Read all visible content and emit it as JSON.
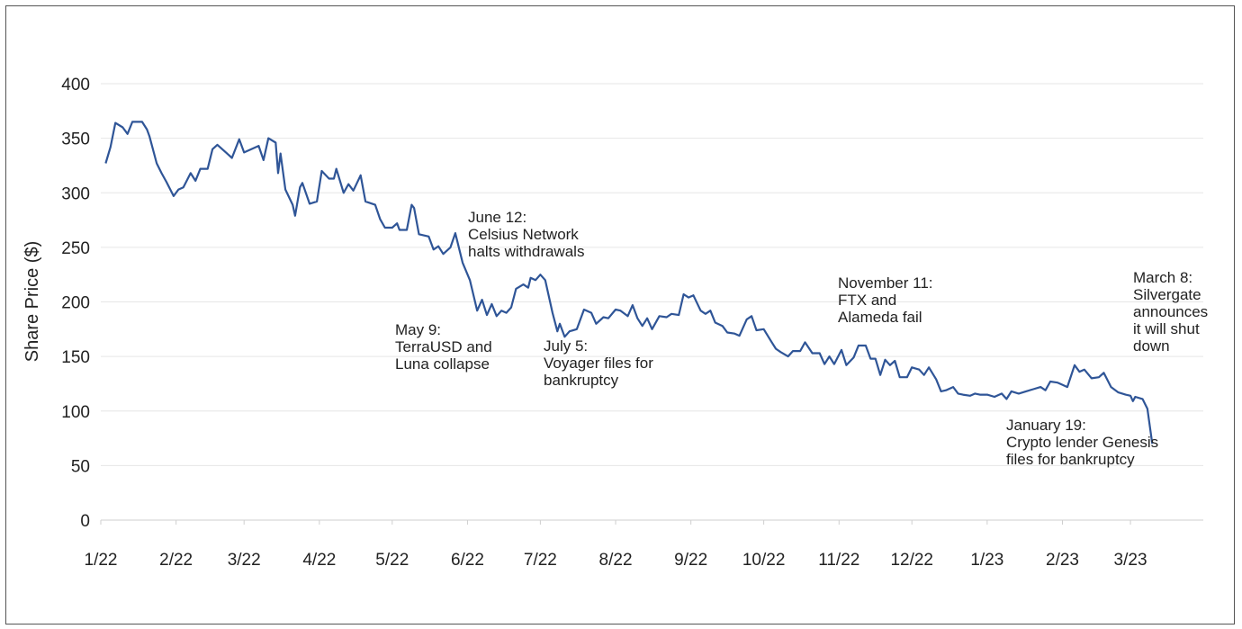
{
  "chart_data": {
    "type": "line",
    "ylabel": "Share Price ($)",
    "xlabel": "",
    "ylim": [
      0,
      400
    ],
    "y_ticks": [
      "0",
      "50",
      "100",
      "150",
      "200",
      "250",
      "300",
      "350",
      "400"
    ],
    "x_ticks": [
      "1/22",
      "2/22",
      "3/22",
      "4/22",
      "5/22",
      "6/22",
      "7/22",
      "8/22",
      "9/22",
      "10/22",
      "11/22",
      "12/22",
      "1/23",
      "2/23",
      "3/23"
    ],
    "grid": "horizontal",
    "colors": {
      "line": "#2f5597",
      "grid": "#e6e6e6",
      "text": "#222222"
    },
    "series": [
      {
        "points": [
          [
            "2022-01-03",
            327
          ],
          [
            "2022-01-05",
            342
          ],
          [
            "2022-01-07",
            364
          ],
          [
            "2022-01-10",
            360
          ],
          [
            "2022-01-12",
            354
          ],
          [
            "2022-01-14",
            365
          ],
          [
            "2022-01-18",
            365
          ],
          [
            "2022-01-20",
            358
          ],
          [
            "2022-01-21",
            352
          ],
          [
            "2022-01-24",
            327
          ],
          [
            "2022-01-26",
            318
          ],
          [
            "2022-01-28",
            310
          ],
          [
            "2022-01-31",
            297
          ],
          [
            "2022-02-02",
            303
          ],
          [
            "2022-02-04",
            305
          ],
          [
            "2022-02-07",
            318
          ],
          [
            "2022-02-09",
            311
          ],
          [
            "2022-02-11",
            322
          ],
          [
            "2022-02-14",
            322
          ],
          [
            "2022-02-16",
            340
          ],
          [
            "2022-02-18",
            344
          ],
          [
            "2022-02-22",
            336
          ],
          [
            "2022-02-24",
            332
          ],
          [
            "2022-02-27",
            349
          ],
          [
            "2022-03-01",
            337
          ],
          [
            "2022-03-04",
            340
          ],
          [
            "2022-03-07",
            343
          ],
          [
            "2022-03-09",
            330
          ],
          [
            "2022-03-11",
            350
          ],
          [
            "2022-03-14",
            346
          ],
          [
            "2022-03-15",
            318
          ],
          [
            "2022-03-16",
            336
          ],
          [
            "2022-03-18",
            303
          ],
          [
            "2022-03-21",
            289
          ],
          [
            "2022-03-22",
            279
          ],
          [
            "2022-03-24",
            305
          ],
          [
            "2022-03-25",
            309
          ],
          [
            "2022-03-28",
            290
          ],
          [
            "2022-03-31",
            292
          ],
          [
            "2022-04-02",
            320
          ],
          [
            "2022-04-05",
            313
          ],
          [
            "2022-04-07",
            313
          ],
          [
            "2022-04-08",
            322
          ],
          [
            "2022-04-11",
            300
          ],
          [
            "2022-04-13",
            308
          ],
          [
            "2022-04-15",
            302
          ],
          [
            "2022-04-18",
            316
          ],
          [
            "2022-04-20",
            292
          ],
          [
            "2022-04-24",
            289
          ],
          [
            "2022-04-26",
            276
          ],
          [
            "2022-04-28",
            268
          ],
          [
            "2022-05-01",
            268
          ],
          [
            "2022-05-03",
            272
          ],
          [
            "2022-05-04",
            266
          ],
          [
            "2022-05-07",
            266
          ],
          [
            "2022-05-09",
            289
          ],
          [
            "2022-05-10",
            286
          ],
          [
            "2022-05-12",
            262
          ],
          [
            "2022-05-16",
            260
          ],
          [
            "2022-05-18",
            248
          ],
          [
            "2022-05-20",
            251
          ],
          [
            "2022-05-22",
            244
          ],
          [
            "2022-05-25",
            250
          ],
          [
            "2022-05-27",
            263
          ],
          [
            "2022-05-30",
            236
          ],
          [
            "2022-06-02",
            220
          ],
          [
            "2022-06-05",
            192
          ],
          [
            "2022-06-07",
            202
          ],
          [
            "2022-06-09",
            188
          ],
          [
            "2022-06-11",
            198
          ],
          [
            "2022-06-13",
            187
          ],
          [
            "2022-06-15",
            192
          ],
          [
            "2022-06-17",
            190
          ],
          [
            "2022-06-19",
            195
          ],
          [
            "2022-06-21",
            212
          ],
          [
            "2022-06-24",
            216
          ],
          [
            "2022-06-26",
            213
          ],
          [
            "2022-06-27",
            222
          ],
          [
            "2022-06-29",
            220
          ],
          [
            "2022-07-01",
            225
          ],
          [
            "2022-07-03",
            220
          ],
          [
            "2022-07-06",
            190
          ],
          [
            "2022-07-08",
            173
          ],
          [
            "2022-07-09",
            180
          ],
          [
            "2022-07-11",
            168
          ],
          [
            "2022-07-13",
            173
          ],
          [
            "2022-07-16",
            175
          ],
          [
            "2022-07-19",
            193
          ],
          [
            "2022-07-22",
            190
          ],
          [
            "2022-07-24",
            180
          ],
          [
            "2022-07-27",
            186
          ],
          [
            "2022-07-29",
            185
          ],
          [
            "2022-08-01",
            193
          ],
          [
            "2022-08-03",
            192
          ],
          [
            "2022-08-06",
            187
          ],
          [
            "2022-08-08",
            197
          ],
          [
            "2022-08-10",
            185
          ],
          [
            "2022-08-12",
            178
          ],
          [
            "2022-08-14",
            185
          ],
          [
            "2022-08-16",
            175
          ],
          [
            "2022-08-19",
            187
          ],
          [
            "2022-08-22",
            186
          ],
          [
            "2022-08-24",
            189
          ],
          [
            "2022-08-27",
            188
          ],
          [
            "2022-08-29",
            207
          ],
          [
            "2022-08-31",
            204
          ],
          [
            "2022-09-02",
            206
          ],
          [
            "2022-09-05",
            192
          ],
          [
            "2022-09-07",
            189
          ],
          [
            "2022-09-09",
            192
          ],
          [
            "2022-09-11",
            181
          ],
          [
            "2022-09-14",
            178
          ],
          [
            "2022-09-16",
            172
          ],
          [
            "2022-09-19",
            171
          ],
          [
            "2022-09-21",
            169
          ],
          [
            "2022-09-24",
            184
          ],
          [
            "2022-09-26",
            187
          ],
          [
            "2022-09-28",
            174
          ],
          [
            "2022-10-01",
            175
          ],
          [
            "2022-10-04",
            164
          ],
          [
            "2022-10-06",
            157
          ],
          [
            "2022-10-08",
            154
          ],
          [
            "2022-10-11",
            150
          ],
          [
            "2022-10-13",
            155
          ],
          [
            "2022-10-16",
            155
          ],
          [
            "2022-10-18",
            163
          ],
          [
            "2022-10-21",
            153
          ],
          [
            "2022-10-24",
            153
          ],
          [
            "2022-10-26",
            143
          ],
          [
            "2022-10-28",
            150
          ],
          [
            "2022-10-30",
            143
          ],
          [
            "2022-11-02",
            156
          ],
          [
            "2022-11-04",
            142
          ],
          [
            "2022-11-07",
            149
          ],
          [
            "2022-11-09",
            160
          ],
          [
            "2022-11-12",
            160
          ],
          [
            "2022-11-14",
            148
          ],
          [
            "2022-11-16",
            148
          ],
          [
            "2022-11-18",
            133
          ],
          [
            "2022-11-20",
            147
          ],
          [
            "2022-11-22",
            142
          ],
          [
            "2022-11-24",
            146
          ],
          [
            "2022-11-26",
            131
          ],
          [
            "2022-11-29",
            131
          ],
          [
            "2022-12-01",
            140
          ],
          [
            "2022-12-04",
            138
          ],
          [
            "2022-12-06",
            133
          ],
          [
            "2022-12-08",
            140
          ],
          [
            "2022-12-11",
            129
          ],
          [
            "2022-12-13",
            118
          ],
          [
            "2022-12-15",
            119
          ],
          [
            "2022-12-18",
            122
          ],
          [
            "2022-12-20",
            116
          ],
          [
            "2022-12-22",
            115
          ],
          [
            "2022-12-25",
            114
          ],
          [
            "2022-12-27",
            116
          ],
          [
            "2022-12-29",
            115
          ],
          [
            "2023-01-01",
            115
          ],
          [
            "2023-01-04",
            113
          ],
          [
            "2023-01-07",
            116
          ],
          [
            "2023-01-09",
            111
          ],
          [
            "2023-01-11",
            118
          ],
          [
            "2023-01-14",
            116
          ],
          [
            "2023-01-17",
            118
          ],
          [
            "2023-01-20",
            120
          ],
          [
            "2023-01-23",
            122
          ],
          [
            "2023-01-25",
            119
          ],
          [
            "2023-01-27",
            127
          ],
          [
            "2023-01-30",
            126
          ],
          [
            "2023-02-01",
            124
          ],
          [
            "2023-02-03",
            122
          ],
          [
            "2023-02-06",
            142
          ],
          [
            "2023-02-08",
            136
          ],
          [
            "2023-02-10",
            138
          ],
          [
            "2023-02-13",
            130
          ],
          [
            "2023-02-16",
            131
          ],
          [
            "2023-02-18",
            135
          ],
          [
            "2023-02-21",
            122
          ],
          [
            "2023-02-24",
            117
          ],
          [
            "2023-02-27",
            115
          ],
          [
            "2023-03-01",
            114
          ],
          [
            "2023-03-02",
            109
          ],
          [
            "2023-03-03",
            113
          ],
          [
            "2023-03-06",
            111
          ],
          [
            "2023-03-08",
            102
          ],
          [
            "2023-03-10",
            70
          ]
        ]
      }
    ],
    "annotations": [
      {
        "lines": [
          "May 9:",
          "TerraUSD and",
          "Luna collapse"
        ]
      },
      {
        "lines": [
          "June 12:",
          "Celsius Network",
          "halts withdrawals"
        ]
      },
      {
        "lines": [
          "July 5:",
          "Voyager files for",
          "bankruptcy"
        ]
      },
      {
        "lines": [
          "November 11:",
          "FTX and",
          "Alameda fail"
        ]
      },
      {
        "lines": [
          "January 19:",
          "Crypto lender Genesis",
          "files for bankruptcy"
        ]
      },
      {
        "lines": [
          "March 8:",
          "Silvergate",
          "announces",
          "it will shut",
          "down"
        ]
      }
    ]
  }
}
